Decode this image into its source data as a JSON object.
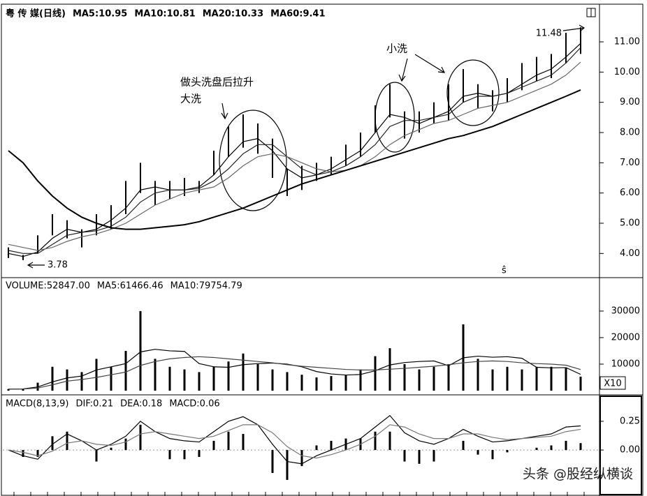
{
  "chart_data": [
    {
      "type": "stock",
      "title": "粤 传 媒(日线)",
      "color": "#000000",
      "high": [
        4.2,
        3.95,
        4.6,
        5.3,
        5.1,
        4.8,
        5.3,
        5.6,
        6.4,
        7.0,
        6.4,
        6.4,
        6.5,
        6.4,
        7.4,
        8.2,
        8.6,
        8.3,
        7.8,
        6.8,
        6.9,
        7.0,
        7.2,
        7.6,
        8.0,
        8.9,
        9.6,
        8.7,
        8.7,
        9.0,
        9.6,
        10.1,
        9.6,
        9.4,
        9.8,
        10.3,
        10.5,
        10.6,
        11.3,
        11.48
      ],
      "low": [
        3.85,
        3.78,
        4.0,
        4.6,
        4.5,
        4.2,
        4.6,
        4.8,
        5.3,
        6.0,
        5.6,
        5.8,
        5.9,
        6.0,
        6.6,
        7.2,
        7.5,
        7.3,
        6.5,
        5.9,
        6.1,
        6.4,
        6.6,
        6.9,
        7.2,
        8.0,
        8.5,
        7.8,
        8.0,
        8.3,
        8.4,
        9.0,
        8.8,
        8.7,
        9.0,
        9.4,
        9.7,
        9.8,
        10.3,
        10.6
      ],
      "series": [
        {
          "name": "MA5:10.95",
          "color": "#000000",
          "values": [
            4.0,
            3.9,
            4.05,
            4.5,
            4.8,
            4.7,
            4.8,
            5.1,
            5.5,
            6.1,
            6.2,
            6.1,
            6.1,
            6.2,
            6.6,
            7.2,
            7.7,
            7.8,
            7.4,
            6.8,
            6.5,
            6.6,
            6.8,
            7.1,
            7.4,
            8.0,
            8.6,
            8.5,
            8.3,
            8.5,
            8.7,
            9.2,
            9.3,
            9.2,
            9.3,
            9.6,
            9.9,
            10.1,
            10.5,
            10.95
          ]
        },
        {
          "name": "MA10:10.81",
          "color": "#222222",
          "values": [
            4.1,
            4.0,
            4.0,
            4.3,
            4.6,
            4.7,
            4.75,
            4.9,
            5.2,
            5.7,
            6.0,
            6.1,
            6.1,
            6.15,
            6.4,
            6.8,
            7.3,
            7.6,
            7.6,
            7.2,
            6.8,
            6.6,
            6.7,
            6.9,
            7.2,
            7.6,
            8.2,
            8.4,
            8.4,
            8.5,
            8.6,
            9.0,
            9.2,
            9.2,
            9.3,
            9.5,
            9.7,
            9.9,
            10.3,
            10.81
          ]
        },
        {
          "name": "MA20:10.33",
          "color": "#666666",
          "values": [
            4.3,
            4.2,
            4.1,
            4.2,
            4.4,
            4.55,
            4.65,
            4.8,
            5.0,
            5.3,
            5.6,
            5.8,
            6.0,
            6.1,
            6.2,
            6.5,
            6.9,
            7.2,
            7.3,
            7.2,
            7.0,
            6.8,
            6.7,
            6.75,
            6.9,
            7.2,
            7.6,
            7.9,
            8.1,
            8.3,
            8.4,
            8.6,
            8.8,
            8.9,
            9.0,
            9.2,
            9.4,
            9.6,
            9.9,
            10.33
          ]
        },
        {
          "name": "MA60:9.41",
          "color": "#000000",
          "values": [
            7.4,
            7.0,
            6.4,
            5.9,
            5.5,
            5.2,
            5.0,
            4.85,
            4.8,
            4.8,
            4.85,
            4.9,
            4.95,
            5.05,
            5.2,
            5.35,
            5.5,
            5.7,
            5.9,
            6.1,
            6.3,
            6.45,
            6.6,
            6.75,
            6.9,
            7.05,
            7.2,
            7.35,
            7.5,
            7.65,
            7.8,
            7.9,
            8.05,
            8.2,
            8.4,
            8.6,
            8.8,
            9.0,
            9.2,
            9.41
          ]
        }
      ],
      "ylim": [
        3.2,
        12.2
      ],
      "yticks": [
        {
          "value": 4,
          "label": "4.00"
        },
        {
          "value": 5,
          "label": "5.00"
        },
        {
          "value": 6,
          "label": "6.00"
        },
        {
          "value": 7,
          "label": "7.00"
        },
        {
          "value": 8,
          "label": "8.00"
        },
        {
          "value": 9,
          "label": "9.00"
        },
        {
          "value": 10,
          "label": "10.00"
        },
        {
          "value": 11,
          "label": "11.00"
        }
      ],
      "annotations": [
        "做头洗盘后拉升",
        "大洗",
        "小洗",
        "11.48",
        "3.78",
        "ŝ"
      ]
    },
    {
      "type": "volume",
      "title": "VOLUME:52847.00",
      "color": "#000000",
      "values": [
        600,
        700,
        3000,
        9000,
        8000,
        7000,
        12000,
        9000,
        15000,
        30000,
        12000,
        9000,
        8000,
        7000,
        9000,
        11000,
        14000,
        10000,
        8000,
        7000,
        6000,
        5000,
        5500,
        6000,
        8000,
        13000,
        16000,
        10000,
        8000,
        9000,
        10000,
        25000,
        12000,
        8000,
        9000,
        8000,
        9000,
        9000,
        8500,
        5285
      ],
      "series": [
        {
          "name": "MA5:61466.46",
          "color": "#000000",
          "values": [
            600,
            650,
            1400,
            3300,
            4800,
            5500,
            7800,
            9000,
            10200,
            14600,
            15600,
            15000,
            14800,
            10200,
            9000,
            8800,
            9800,
            10200,
            10400,
            10000,
            9000,
            7200,
            6300,
            5900,
            6100,
            7500,
            9700,
            10600,
            11000,
            11200,
            9400,
            12400,
            13000,
            12600,
            12800,
            12200,
            8800,
            8600,
            8700,
            6147
          ]
        },
        {
          "name": "MA10:79754.79",
          "color": "#444444",
          "values": [
            600,
            620,
            1000,
            2200,
            3600,
            4200,
            5000,
            6000,
            7000,
            9500,
            11000,
            12000,
            12500,
            12800,
            12500,
            12000,
            11500,
            11000,
            10500,
            9800,
            9200,
            8800,
            8400,
            8000,
            7800,
            7800,
            8100,
            8400,
            8800,
            9200,
            9800,
            10500,
            11000,
            11200,
            11000,
            10500,
            10200,
            10000,
            9600,
            7975
          ]
        }
      ],
      "ylim": [
        0,
        42600
      ],
      "yticks": [
        10000,
        20000,
        30000
      ],
      "unit_label": "X10"
    },
    {
      "type": "macd",
      "title": "MACD(8,13,9)",
      "color": "#000000",
      "hist_label": "MACD:0.06",
      "values": [
        0,
        -0.06,
        -0.06,
        0.12,
        0.16,
        0.0,
        -0.1,
        0.02,
        0.1,
        0.22,
        0.0,
        -0.08,
        -0.08,
        -0.06,
        0.08,
        0.16,
        0.14,
        0.0,
        -0.2,
        -0.26,
        -0.14,
        0.04,
        0.08,
        0.1,
        0.1,
        0.16,
        0.16,
        -0.1,
        -0.12,
        -0.1,
        0.0,
        0.08,
        -0.04,
        -0.08,
        -0.02,
        0.0,
        0.02,
        0.04,
        0.08,
        0.06
      ],
      "series": [
        {
          "name": "DIF:0.21",
          "color": "#000000",
          "values": [
            0,
            -0.05,
            -0.08,
            0.05,
            0.14,
            0.08,
            0.0,
            0.05,
            0.12,
            0.25,
            0.16,
            0.1,
            0.08,
            0.07,
            0.16,
            0.25,
            0.29,
            0.22,
            0.05,
            -0.1,
            -0.12,
            -0.05,
            0.0,
            0.05,
            0.1,
            0.2,
            0.3,
            0.15,
            0.08,
            0.05,
            0.1,
            0.18,
            0.12,
            0.07,
            0.08,
            0.1,
            0.12,
            0.14,
            0.2,
            0.21
          ]
        },
        {
          "name": "DEA:0.18",
          "color": "#777777",
          "values": [
            0,
            -0.02,
            -0.05,
            -0.01,
            0.06,
            0.08,
            0.05,
            0.04,
            0.07,
            0.14,
            0.16,
            0.14,
            0.12,
            0.1,
            0.12,
            0.17,
            0.22,
            0.22,
            0.15,
            0.03,
            -0.05,
            -0.07,
            -0.04,
            0.0,
            0.05,
            0.12,
            0.22,
            0.2,
            0.14,
            0.1,
            0.1,
            0.14,
            0.14,
            0.11,
            0.09,
            0.1,
            0.11,
            0.12,
            0.16,
            0.18
          ]
        }
      ],
      "ylim": [
        -0.4,
        0.48
      ],
      "yticks": [
        {
          "value": 0,
          "label": "0.00"
        },
        0.25
      ]
    }
  ],
  "watermark": "头条 @股经纵横谈"
}
